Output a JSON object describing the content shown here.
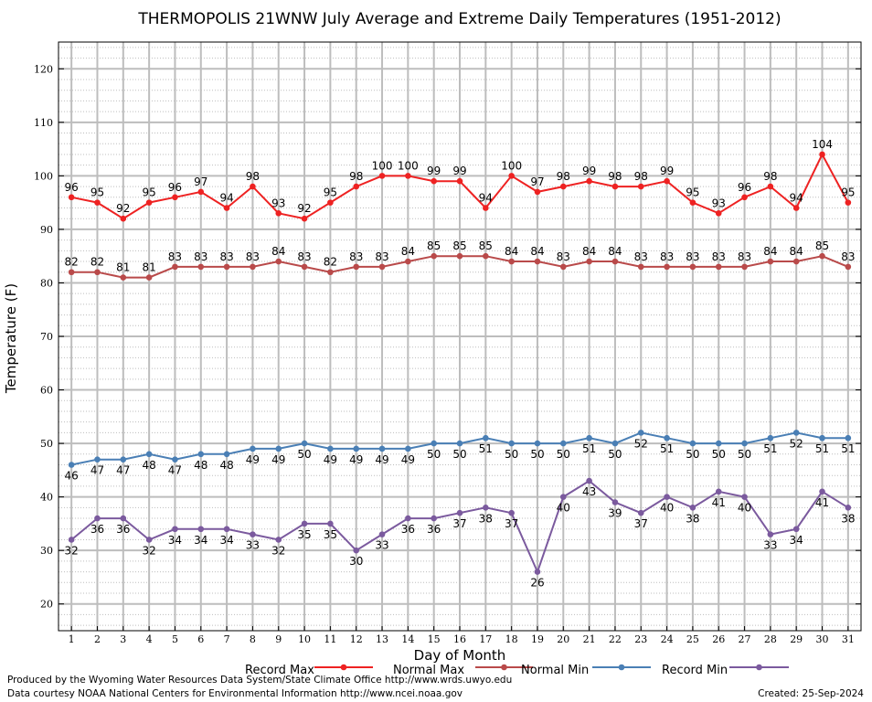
{
  "chart_data": {
    "type": "line",
    "title": "THERMOPOLIS 21WNW July Average and Extreme Daily Temperatures (1951-2012)",
    "xlabel": "Day of Month",
    "ylabel": "Temperature (F)",
    "ylim": [
      15,
      125
    ],
    "yticks": [
      20,
      30,
      40,
      50,
      60,
      70,
      80,
      90,
      100,
      110,
      120
    ],
    "x": [
      1,
      2,
      3,
      4,
      5,
      6,
      7,
      8,
      9,
      10,
      11,
      12,
      13,
      14,
      15,
      16,
      17,
      18,
      19,
      20,
      21,
      22,
      23,
      24,
      25,
      26,
      27,
      28,
      29,
      30,
      31
    ],
    "grid": true,
    "legend_position": "bottom",
    "series": [
      {
        "name": "Record Max",
        "color": "#ee2222",
        "label_position": "above",
        "values": [
          96,
          95,
          92,
          95,
          96,
          97,
          94,
          98,
          93,
          92,
          95,
          98,
          100,
          100,
          99,
          99,
          94,
          100,
          97,
          98,
          99,
          98,
          98,
          99,
          95,
          93,
          96,
          98,
          94,
          104,
          95
        ]
      },
      {
        "name": "Normal Max",
        "color": "#b94a4a",
        "label_position": "above",
        "values": [
          82,
          82,
          81,
          81,
          83,
          83,
          83,
          83,
          84,
          83,
          82,
          83,
          83,
          84,
          85,
          85,
          85,
          84,
          84,
          83,
          84,
          84,
          83,
          83,
          83,
          83,
          83,
          84,
          84,
          85,
          83
        ]
      },
      {
        "name": "Normal Min",
        "color": "#4a7fb5",
        "label_position": "below",
        "values": [
          46,
          47,
          47,
          48,
          47,
          48,
          48,
          49,
          49,
          50,
          49,
          49,
          49,
          49,
          50,
          50,
          51,
          50,
          50,
          50,
          51,
          50,
          52,
          51,
          50,
          50,
          50,
          51,
          52,
          51,
          51
        ]
      },
      {
        "name": "Record Min",
        "color": "#7b5a9e",
        "label_position": "below",
        "values": [
          32,
          36,
          36,
          32,
          34,
          34,
          34,
          33,
          32,
          35,
          35,
          30,
          33,
          36,
          36,
          37,
          38,
          37,
          26,
          40,
          43,
          39,
          37,
          40,
          38,
          41,
          40,
          33,
          34,
          41,
          38
        ]
      }
    ]
  },
  "footer": {
    "produced_by": "Produced by the Wyoming Water Resources Data System/State Climate Office http://www.wrds.uwyo.edu",
    "data_courtesy": "Data courtesy NOAA National Centers for Environmental Information http://www.ncei.noaa.gov",
    "created": "Created:  25-Sep-2024"
  }
}
